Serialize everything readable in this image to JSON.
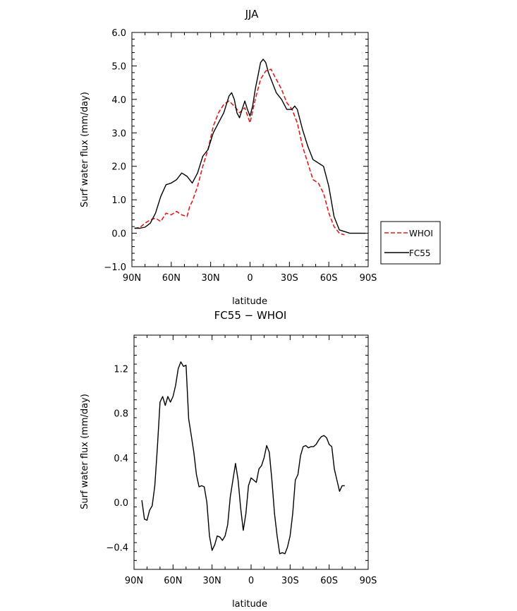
{
  "chart_data": [
    {
      "type": "line",
      "title": "JJA",
      "xlabel": "latitude",
      "ylabel": "Surf water flux (mm/day)",
      "xlim": [
        90,
        -90
      ],
      "ylim": [
        -1.0,
        6.0
      ],
      "x_ticks": [
        90,
        60,
        30,
        0,
        -30,
        -60,
        -90
      ],
      "x_tick_labels": [
        "90N",
        "60N",
        "30N",
        "0",
        "30S",
        "60S",
        "90S"
      ],
      "y_ticks": [
        -1.0,
        0.0,
        1.0,
        2.0,
        3.0,
        4.0,
        5.0,
        6.0
      ],
      "y_tick_labels": [
        "−1.0",
        "0.0",
        "1.0",
        "2.0",
        "3.0",
        "4.0",
        "5.0",
        "6.0"
      ],
      "legend_position": "right",
      "series": [
        {
          "name": "WHOI",
          "color": "#e41a1c",
          "dash": "dashed",
          "x": [
            88,
            84,
            80,
            76,
            72,
            68,
            64,
            60,
            56,
            52,
            48,
            46,
            44,
            40,
            36,
            32,
            28,
            24,
            20,
            16,
            12,
            8,
            4,
            0,
            -4,
            -8,
            -12,
            -16,
            -20,
            -24,
            -28,
            -32,
            -36,
            -40,
            -44,
            -48,
            -52,
            -56,
            -60,
            -64,
            -68,
            -72
          ],
          "y": [
            0.15,
            0.17,
            0.3,
            0.4,
            0.45,
            0.35,
            0.6,
            0.55,
            0.65,
            0.55,
            0.5,
            0.8,
            0.95,
            1.4,
            2.0,
            2.5,
            3.2,
            3.6,
            3.85,
            3.95,
            3.8,
            3.6,
            3.75,
            3.3,
            4.0,
            4.6,
            4.85,
            4.9,
            4.6,
            4.3,
            3.9,
            3.7,
            3.3,
            2.6,
            2.1,
            1.6,
            1.5,
            1.2,
            0.6,
            0.2,
            0.0,
            -0.05
          ]
        },
        {
          "name": "FC55",
          "color": "#000000",
          "dash": "solid",
          "x": [
            88,
            84,
            80,
            76,
            72,
            68,
            64,
            60,
            56,
            52,
            48,
            44,
            40,
            36,
            32,
            28,
            24,
            20,
            16,
            14,
            12,
            10,
            8,
            6,
            4,
            2,
            0,
            -2,
            -4,
            -6,
            -8,
            -10,
            -12,
            -14,
            -16,
            -18,
            -20,
            -24,
            -28,
            -32,
            -34,
            -36,
            -40,
            -44,
            -48,
            -52,
            -56,
            -60,
            -64,
            -68,
            -72,
            -76,
            -80,
            -84,
            -88
          ],
          "y": [
            0.15,
            0.15,
            0.18,
            0.3,
            0.6,
            1.1,
            1.45,
            1.5,
            1.6,
            1.8,
            1.7,
            1.5,
            1.8,
            2.3,
            2.5,
            3.0,
            3.3,
            3.6,
            4.1,
            4.2,
            4.0,
            3.6,
            3.45,
            3.7,
            3.95,
            3.7,
            3.5,
            3.8,
            4.3,
            4.7,
            5.1,
            5.2,
            5.1,
            4.8,
            4.6,
            4.4,
            4.2,
            4.0,
            3.7,
            3.7,
            3.8,
            3.7,
            3.1,
            2.6,
            2.2,
            2.1,
            2.0,
            1.4,
            0.5,
            0.1,
            0.05,
            0.0,
            0.0,
            0.0,
            0.0
          ]
        }
      ]
    },
    {
      "type": "line",
      "title": "FC55 − WHOI",
      "xlabel": "latitude",
      "ylabel": "Surf water flux (mm/day)",
      "xlim": [
        90,
        -90
      ],
      "ylim": [
        -0.6,
        1.5
      ],
      "x_ticks": [
        90,
        60,
        30,
        0,
        -30,
        -60,
        -90
      ],
      "x_tick_labels": [
        "90N",
        "60N",
        "30N",
        "0",
        "30S",
        "60S",
        "90S"
      ],
      "y_ticks": [
        -0.4,
        0.0,
        0.4,
        0.8,
        1.2
      ],
      "y_tick_labels": [
        "−0.4",
        "0.0",
        "0.4",
        "0.8",
        "1.2"
      ],
      "series": [
        {
          "color": "#000000",
          "dash": "solid",
          "x": [
            84,
            82,
            80,
            78,
            76,
            74,
            72,
            70,
            68,
            66,
            64,
            62,
            60,
            58,
            56,
            54,
            52,
            50,
            48,
            46,
            44,
            42,
            40,
            38,
            36,
            34,
            32,
            30,
            28,
            26,
            24,
            22,
            20,
            18,
            16,
            14,
            12,
            10,
            8,
            6,
            4,
            2,
            0,
            -2,
            -4,
            -6,
            -8,
            -10,
            -12,
            -14,
            -16,
            -18,
            -20,
            -22,
            -24,
            -26,
            -28,
            -30,
            -32,
            -34,
            -36,
            -38,
            -40,
            -42,
            -44,
            -46,
            -48,
            -50,
            -52,
            -54,
            -56,
            -58,
            -60,
            -62,
            -64,
            -66,
            -68,
            -70,
            -72
          ],
          "y": [
            0.02,
            -0.15,
            -0.16,
            -0.07,
            -0.03,
            0.15,
            0.5,
            0.9,
            0.95,
            0.87,
            0.95,
            0.9,
            0.95,
            1.05,
            1.2,
            1.26,
            1.22,
            1.23,
            0.75,
            0.6,
            0.45,
            0.25,
            0.14,
            0.15,
            0.14,
            0.0,
            -0.3,
            -0.43,
            -0.38,
            -0.3,
            -0.31,
            -0.34,
            -0.3,
            -0.2,
            0.05,
            0.2,
            0.35,
            0.2,
            -0.05,
            -0.25,
            -0.1,
            0.15,
            0.22,
            0.2,
            0.18,
            0.3,
            0.33,
            0.4,
            0.51,
            0.45,
            0.2,
            -0.1,
            -0.3,
            -0.46,
            -0.45,
            -0.46,
            -0.4,
            -0.3,
            -0.1,
            0.2,
            0.25,
            0.42,
            0.5,
            0.51,
            0.49,
            0.5,
            0.5,
            0.52,
            0.56,
            0.59,
            0.6,
            0.58,
            0.52,
            0.5,
            0.3,
            0.2,
            0.1,
            0.15,
            0.15
          ]
        }
      ]
    }
  ]
}
